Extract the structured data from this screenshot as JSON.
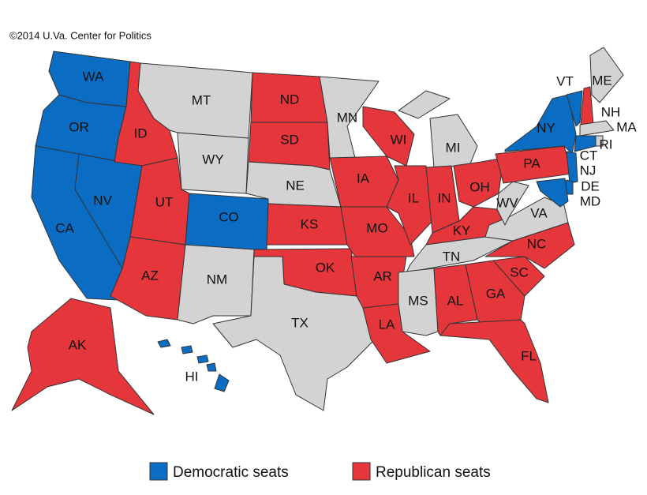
{
  "copyright": "©2014 U.Va. Center for Politics",
  "legend": [
    {
      "label": "Democratic seats",
      "color": "#0b6cc4"
    },
    {
      "label": "Republican seats",
      "color": "#e5363b"
    }
  ],
  "states": [
    {
      "label": "WA",
      "color": "#0b6cc4"
    },
    {
      "label": "OR",
      "color": "#0b6cc4"
    },
    {
      "label": "CA",
      "color": "#0b6cc4"
    },
    {
      "label": "NV",
      "color": "#0b6cc4"
    },
    {
      "label": "ID",
      "color": "#e5363b"
    },
    {
      "label": "MT",
      "color": "#d3d3d3"
    },
    {
      "label": "WY",
      "color": "#d3d3d3"
    },
    {
      "label": "UT",
      "color": "#e5363b"
    },
    {
      "label": "CO",
      "color": "#0b6cc4"
    },
    {
      "label": "AZ",
      "color": "#e5363b"
    },
    {
      "label": "NM",
      "color": "#d3d3d3"
    },
    {
      "label": "ND",
      "color": "#e5363b"
    },
    {
      "label": "SD",
      "color": "#e5363b"
    },
    {
      "label": "NE",
      "color": "#d3d3d3"
    },
    {
      "label": "KS",
      "color": "#e5363b"
    },
    {
      "label": "OK",
      "color": "#e5363b"
    },
    {
      "label": "TX",
      "color": "#d3d3d3"
    },
    {
      "label": "MN",
      "color": "#d3d3d3"
    },
    {
      "label": "IA",
      "color": "#e5363b"
    },
    {
      "label": "MO",
      "color": "#e5363b"
    },
    {
      "label": "AR",
      "color": "#e5363b"
    },
    {
      "label": "LA",
      "color": "#e5363b"
    },
    {
      "label": "WI",
      "color": "#e5363b"
    },
    {
      "label": "IL",
      "color": "#e5363b"
    },
    {
      "label": "MI",
      "color": "#d3d3d3"
    },
    {
      "label": "IN",
      "color": "#e5363b"
    },
    {
      "label": "OH",
      "color": "#e5363b"
    },
    {
      "label": "KY",
      "color": "#e5363b"
    },
    {
      "label": "TN",
      "color": "#d3d3d3"
    },
    {
      "label": "MS",
      "color": "#d3d3d3"
    },
    {
      "label": "AL",
      "color": "#e5363b"
    },
    {
      "label": "GA",
      "color": "#e5363b"
    },
    {
      "label": "FL",
      "color": "#e5363b"
    },
    {
      "label": "SC",
      "color": "#e5363b"
    },
    {
      "label": "NC",
      "color": "#e5363b"
    },
    {
      "label": "VA",
      "color": "#d3d3d3"
    },
    {
      "label": "WV",
      "color": "#d3d3d3"
    },
    {
      "label": "PA",
      "color": "#e5363b"
    },
    {
      "label": "NY",
      "color": "#0b6cc4"
    },
    {
      "label": "VT",
      "color": "#0b6cc4"
    },
    {
      "label": "NH",
      "color": "#e5363b"
    },
    {
      "label": "ME",
      "color": "#d3d3d3"
    },
    {
      "label": "MA",
      "color": "#d3d3d3"
    },
    {
      "label": "RI",
      "color": "#d3d3d3"
    },
    {
      "label": "CT",
      "color": "#0b6cc4"
    },
    {
      "label": "NJ",
      "color": "#0b6cc4"
    },
    {
      "label": "DE",
      "color": "#0b6cc4"
    },
    {
      "label": "MD",
      "color": "#0b6cc4"
    },
    {
      "label": "AK",
      "color": "#e5363b"
    },
    {
      "label": "HI",
      "color": "#0b6cc4"
    }
  ]
}
